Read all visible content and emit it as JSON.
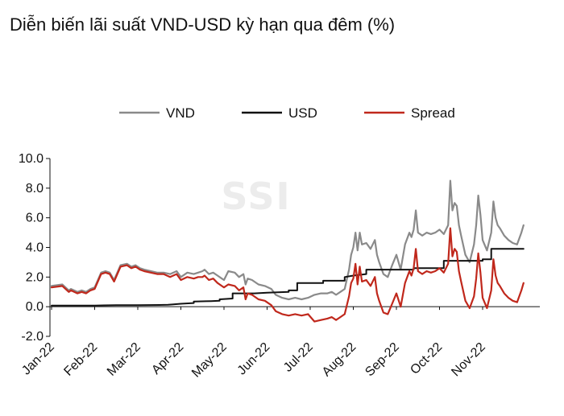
{
  "chart_data": {
    "type": "line",
    "title": "Diễn biến lãi suất VND-USD kỳ hạn qua đêm (%)",
    "watermark": "SSI",
    "xlabel": "",
    "ylabel": "",
    "ylim": [
      -2.0,
      10.0
    ],
    "yticks": [
      "10.0",
      "8.0",
      "6.0",
      "4.0",
      "2.0",
      "0.0",
      "-2.0"
    ],
    "yticks_values": [
      10,
      8,
      6,
      4,
      2,
      0,
      -2
    ],
    "xticks": [
      "Jan-22",
      "Feb-22",
      "Mar-22",
      "Apr-22",
      "May-22",
      "Jun-22",
      "Jul-22",
      "Aug-22",
      "Sep-22",
      "Oct-22",
      "Nov-22"
    ],
    "grid": false,
    "legend_position": "top",
    "series": [
      {
        "name": "VND",
        "color": "#8a8a8a",
        "x": [
          0,
          0.25,
          0.4,
          0.45,
          0.6,
          0.7,
          0.8,
          0.9,
          1.0,
          1.15,
          1.25,
          1.35,
          1.45,
          1.6,
          1.75,
          1.85,
          1.95,
          2.05,
          2.15,
          2.3,
          2.45,
          2.6,
          2.75,
          2.9,
          3.0,
          3.15,
          3.3,
          3.4,
          3.5,
          3.55,
          3.65,
          3.75,
          3.85,
          3.95,
          4.0,
          4.1,
          4.25,
          4.35,
          4.45,
          4.5,
          4.55,
          4.65,
          4.8,
          4.95,
          5.1,
          5.2,
          5.35,
          5.5,
          5.65,
          5.8,
          5.95,
          6.1,
          6.25,
          6.4,
          6.5,
          6.6,
          6.7,
          6.8,
          6.9,
          6.95,
          7.0,
          7.05,
          7.1,
          7.15,
          7.2,
          7.3,
          7.4,
          7.5,
          7.55,
          7.6,
          7.7,
          7.8,
          7.9,
          8.0,
          8.1,
          8.2,
          8.3,
          8.35,
          8.4,
          8.45,
          8.5,
          8.6,
          8.7,
          8.8,
          8.9,
          9.0,
          9.1,
          9.2,
          9.25,
          9.3,
          9.35,
          9.4,
          9.45,
          9.5,
          9.6,
          9.7,
          9.8,
          9.85,
          9.9,
          9.95,
          10.0,
          10.1,
          10.2,
          10.25,
          10.3,
          10.35,
          10.4,
          10.5,
          10.6,
          10.7,
          10.8,
          10.9,
          10.95
        ],
        "values": [
          1.4,
          1.5,
          1.1,
          1.2,
          1.0,
          1.1,
          1.0,
          1.2,
          1.3,
          2.3,
          2.4,
          2.3,
          1.8,
          2.8,
          2.9,
          2.7,
          2.8,
          2.6,
          2.5,
          2.4,
          2.3,
          2.3,
          2.2,
          2.4,
          2.0,
          2.3,
          2.2,
          2.3,
          2.4,
          2.5,
          2.2,
          2.3,
          2.1,
          1.9,
          1.8,
          2.4,
          2.3,
          2.0,
          2.2,
          1.5,
          1.9,
          1.8,
          1.5,
          1.4,
          1.2,
          0.8,
          0.6,
          0.5,
          0.6,
          0.5,
          0.6,
          0.8,
          0.9,
          0.9,
          1.0,
          0.8,
          1.0,
          1.2,
          2.5,
          3.5,
          4.0,
          5.0,
          3.8,
          5.0,
          4.2,
          4.3,
          3.9,
          4.5,
          3.5,
          3.0,
          2.2,
          2.0,
          2.8,
          3.5,
          2.5,
          4.2,
          5.0,
          4.7,
          5.2,
          6.5,
          5.0,
          4.8,
          5.0,
          4.9,
          5.0,
          5.2,
          4.9,
          5.5,
          8.5,
          6.5,
          7.0,
          6.8,
          5.5,
          4.8,
          3.5,
          3.0,
          4.2,
          5.5,
          7.5,
          6.2,
          4.5,
          3.8,
          5.0,
          7.1,
          6.0,
          5.5,
          5.3,
          4.8,
          4.5,
          4.3,
          4.2,
          5.0,
          5.5
        ]
      },
      {
        "name": "USD",
        "color": "#111111",
        "x": [
          0,
          0.5,
          1.0,
          1.5,
          2.0,
          2.5,
          2.7,
          2.8,
          3.0,
          3.3,
          3.3,
          3.7,
          3.9,
          3.9,
          4.2,
          4.2,
          4.7,
          5.0,
          5.5,
          5.5,
          5.7,
          5.7,
          6.3,
          6.3,
          6.8,
          6.8,
          7.0,
          7.3,
          7.3,
          8.4,
          8.4,
          8.5,
          8.5,
          9.1,
          9.1,
          10.0,
          10.0,
          10.2,
          10.2,
          10.95
        ],
        "values": [
          0.08,
          0.08,
          0.08,
          0.1,
          0.1,
          0.12,
          0.13,
          0.15,
          0.2,
          0.25,
          0.35,
          0.38,
          0.4,
          0.5,
          0.55,
          0.9,
          0.9,
          0.95,
          1.0,
          1.1,
          1.1,
          1.6,
          1.6,
          1.75,
          1.75,
          2.0,
          2.1,
          2.2,
          2.5,
          2.5,
          2.6,
          2.6,
          2.6,
          2.6,
          3.1,
          3.1,
          3.2,
          3.2,
          3.9,
          3.9
        ]
      },
      {
        "name": "Spread",
        "color": "#c0281c",
        "x": [
          0,
          0.25,
          0.4,
          0.45,
          0.6,
          0.7,
          0.8,
          0.9,
          1.0,
          1.15,
          1.25,
          1.35,
          1.45,
          1.6,
          1.75,
          1.85,
          1.95,
          2.05,
          2.15,
          2.3,
          2.45,
          2.6,
          2.75,
          2.9,
          3.0,
          3.15,
          3.3,
          3.4,
          3.5,
          3.55,
          3.65,
          3.75,
          3.85,
          3.95,
          4.0,
          4.1,
          4.25,
          4.35,
          4.45,
          4.5,
          4.55,
          4.65,
          4.8,
          4.95,
          5.1,
          5.2,
          5.35,
          5.5,
          5.65,
          5.8,
          5.95,
          6.1,
          6.25,
          6.4,
          6.5,
          6.6,
          6.7,
          6.8,
          6.9,
          6.95,
          7.0,
          7.05,
          7.1,
          7.15,
          7.2,
          7.3,
          7.4,
          7.5,
          7.55,
          7.6,
          7.7,
          7.8,
          7.9,
          8.0,
          8.1,
          8.2,
          8.3,
          8.35,
          8.4,
          8.45,
          8.5,
          8.6,
          8.7,
          8.8,
          8.9,
          9.0,
          9.1,
          9.2,
          9.25,
          9.3,
          9.35,
          9.4,
          9.45,
          9.5,
          9.6,
          9.7,
          9.8,
          9.85,
          9.9,
          9.95,
          10.0,
          10.1,
          10.2,
          10.25,
          10.3,
          10.35,
          10.4,
          10.5,
          10.6,
          10.7,
          10.8,
          10.9,
          10.95
        ],
        "values": [
          1.3,
          1.4,
          1.0,
          1.1,
          0.9,
          1.0,
          0.9,
          1.1,
          1.2,
          2.2,
          2.3,
          2.2,
          1.7,
          2.7,
          2.8,
          2.6,
          2.7,
          2.5,
          2.4,
          2.3,
          2.2,
          2.2,
          2.0,
          2.2,
          1.8,
          2.0,
          1.9,
          2.0,
          2.0,
          2.1,
          1.8,
          1.9,
          1.6,
          1.4,
          1.3,
          1.5,
          1.4,
          1.1,
          1.3,
          0.5,
          0.9,
          0.8,
          0.5,
          0.4,
          0.1,
          -0.3,
          -0.5,
          -0.6,
          -0.5,
          -0.6,
          -0.5,
          -1.0,
          -0.9,
          -0.8,
          -0.7,
          -0.9,
          -0.7,
          -0.5,
          0.7,
          1.6,
          1.9,
          2.9,
          1.5,
          2.7,
          1.7,
          1.8,
          1.4,
          2.0,
          0.9,
          0.4,
          -0.4,
          -0.5,
          0.2,
          0.9,
          0.0,
          1.6,
          2.4,
          2.1,
          2.6,
          3.9,
          2.4,
          2.2,
          2.4,
          2.3,
          2.4,
          2.6,
          2.3,
          2.9,
          5.3,
          3.4,
          3.9,
          3.7,
          2.4,
          1.7,
          0.4,
          -0.1,
          0.7,
          1.9,
          3.6,
          2.3,
          0.6,
          -0.1,
          1.1,
          3.2,
          2.1,
          1.6,
          1.4,
          0.9,
          0.6,
          0.4,
          0.3,
          1.1,
          1.6
        ]
      }
    ]
  }
}
